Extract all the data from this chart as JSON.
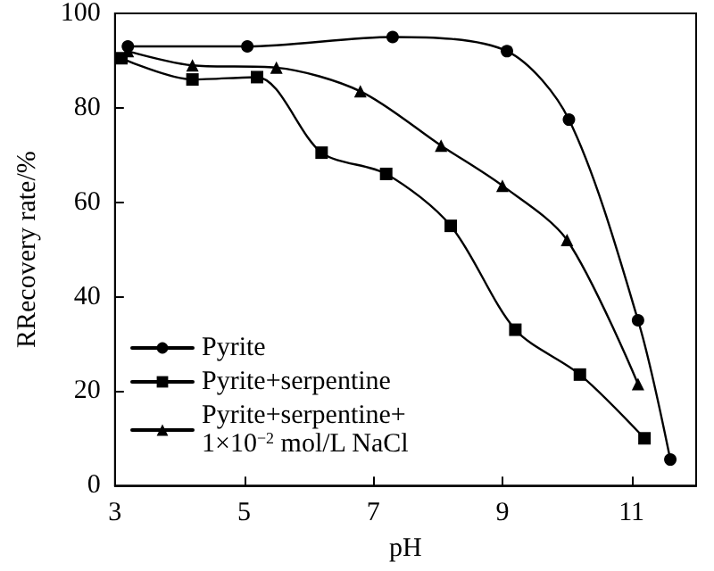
{
  "chart_data": {
    "type": "line",
    "xlabel": "pH",
    "ylabel": "RRecovery rate/%",
    "xlim": [
      3,
      12
    ],
    "xticks": [
      3,
      5,
      7,
      9,
      11
    ],
    "ylim": [
      0,
      100
    ],
    "yticks": [
      0,
      20,
      40,
      60,
      80,
      100
    ],
    "legend": "bottom left",
    "line_style": "solid",
    "series": [
      {
        "name": "Pyrite",
        "color": "#000000",
        "marker": "circle",
        "x": [
          3.2,
          5.05,
          7.3,
          9.07,
          10.03,
          11.1,
          11.6
        ],
        "values": [
          93,
          93,
          95,
          92,
          77.5,
          35,
          5.5
        ]
      },
      {
        "name": "Pyrite+serpentine",
        "color": "#000000",
        "marker": "square",
        "x": [
          3.1,
          4.2,
          5.2,
          6.2,
          7.2,
          8.2,
          9.2,
          10.2,
          11.2
        ],
        "values": [
          90.5,
          86,
          86.5,
          70.5,
          66,
          55,
          33,
          23.5,
          10
        ]
      },
      {
        "name": "Pyrite+serpentine+\n1×10$^{−2}$ mol/L NaCl",
        "color": "#000000",
        "marker": "triangle",
        "x": [
          3.2,
          4.2,
          5.5,
          6.8,
          8.05,
          9.0,
          10.0,
          11.1
        ],
        "values": [
          92,
          89,
          88.5,
          83.5,
          72,
          63.5,
          52,
          21.5
        ]
      }
    ]
  }
}
